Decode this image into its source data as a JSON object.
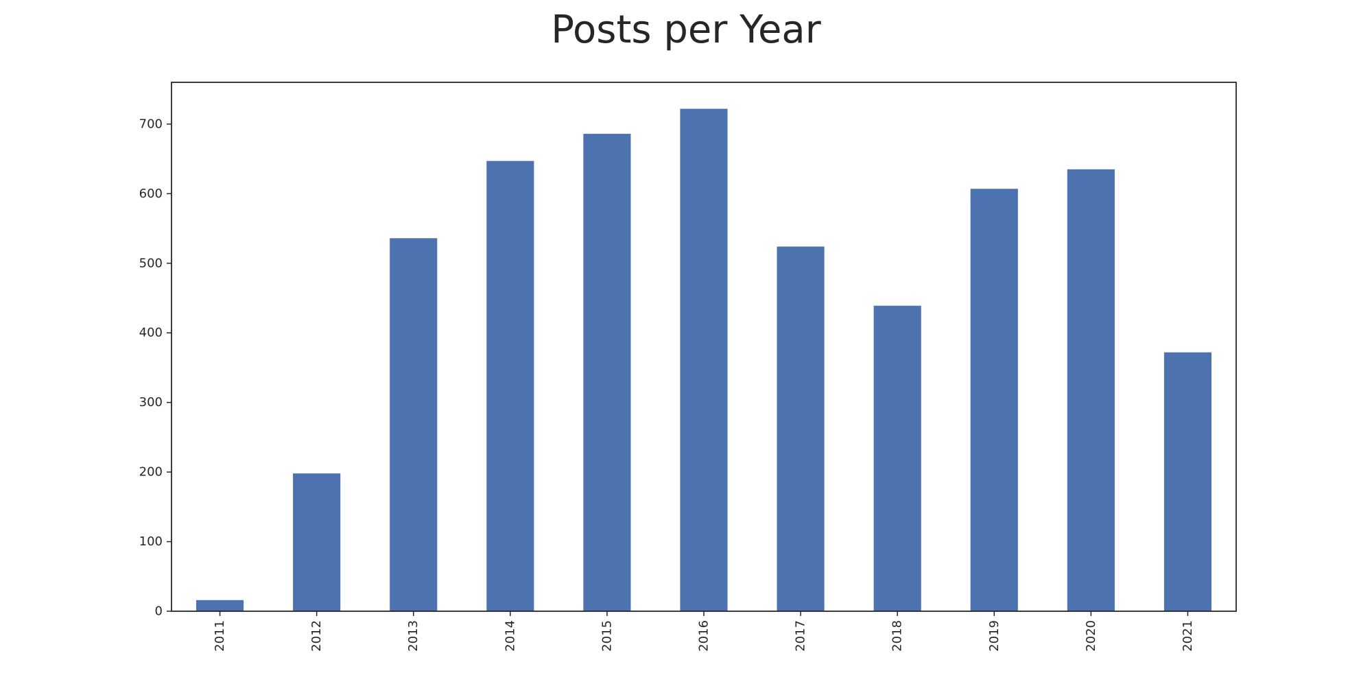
{
  "chart_data": {
    "type": "bar",
    "title": "Posts per Year",
    "xlabel": "",
    "ylabel": "",
    "categories": [
      "2011",
      "2012",
      "2013",
      "2014",
      "2015",
      "2016",
      "2017",
      "2018",
      "2019",
      "2020",
      "2021"
    ],
    "values": [
      16,
      198,
      536,
      647,
      686,
      722,
      524,
      439,
      607,
      635,
      372
    ],
    "ylim": [
      0,
      760
    ],
    "yticks": [
      0,
      100,
      200,
      300,
      400,
      500,
      600,
      700
    ],
    "bar_color": "#4c72b0",
    "grid": false,
    "legend": "none"
  }
}
